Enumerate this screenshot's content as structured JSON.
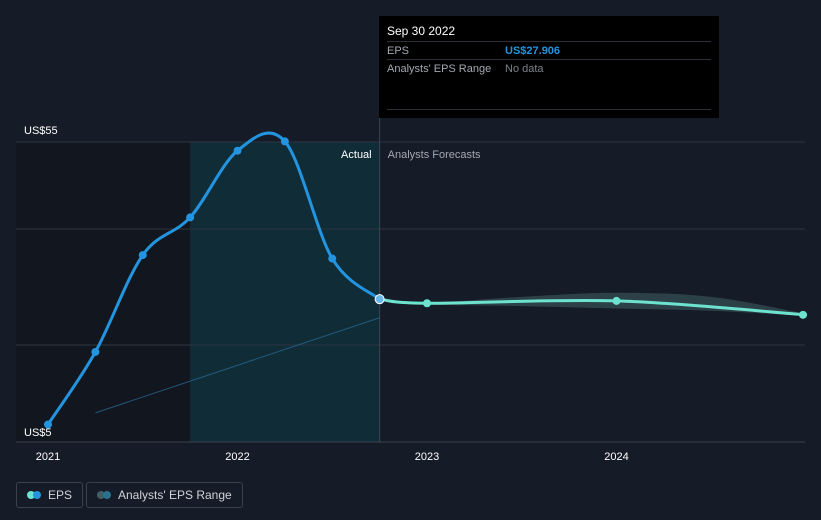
{
  "colors": {
    "background": "#151b27",
    "actual_line": "#2394df",
    "forecast_line": "#6ce2cf",
    "forecast_range": "#3f5f63",
    "highlight_band": "#0f2f3b",
    "eps_value": "#2394df"
  },
  "tooltip": {
    "date": "Sep 30 2022",
    "rows": [
      {
        "label": "EPS",
        "value": "US$27.906"
      },
      {
        "label": "Analysts' EPS Range",
        "value": "No data"
      }
    ]
  },
  "labels": {
    "actual": "Actual",
    "forecast": "Analysts Forecasts"
  },
  "legend": {
    "eps": "EPS",
    "range": "Analysts' EPS Range"
  },
  "chart_data": {
    "type": "line",
    "y_tick_labels": [
      {
        "value": 55,
        "label": "US$55"
      },
      {
        "value": 5,
        "label": "US$5"
      }
    ],
    "ylim": [
      5,
      55
    ],
    "xlim": [
      2021.0,
      2024.998
    ],
    "x_ticks": [
      {
        "value": 2021,
        "label": "2021"
      },
      {
        "value": 2022,
        "label": "2022"
      },
      {
        "value": 2023,
        "label": "2023"
      },
      {
        "value": 2024,
        "label": "2024"
      }
    ],
    "gridlines": [
      55,
      40,
      20
    ],
    "highlight_range": [
      2021.75,
      2022.75
    ],
    "series": [
      {
        "name": "EPS",
        "kind": "actual",
        "points": [
          {
            "x": 2021.0,
            "y": 6.3
          },
          {
            "x": 2021.25,
            "y": 18.8
          },
          {
            "x": 2021.5,
            "y": 35.5
          },
          {
            "x": 2021.75,
            "y": 42.0
          },
          {
            "x": 2022.0,
            "y": 53.5
          },
          {
            "x": 2022.25,
            "y": 55.1
          },
          {
            "x": 2022.5,
            "y": 34.9
          },
          {
            "x": 2022.75,
            "y": 27.9
          }
        ]
      },
      {
        "name": "Analysts Forecasts",
        "kind": "forecast",
        "points": [
          {
            "x": 2022.75,
            "y": 27.9
          },
          {
            "x": 2023.0,
            "y": 27.2
          },
          {
            "x": 2024.0,
            "y": 27.6
          },
          {
            "x": 2024.998,
            "y": 25.2
          }
        ],
        "range_upper": [
          {
            "x": 2022.75,
            "y": 27.9
          },
          {
            "x": 2023.0,
            "y": 27.3
          },
          {
            "x": 2023.5,
            "y": 28.3
          },
          {
            "x": 2024.0,
            "y": 29.0
          },
          {
            "x": 2024.5,
            "y": 28.3
          },
          {
            "x": 2024.998,
            "y": 25.4
          }
        ],
        "range_lower": [
          {
            "x": 2022.75,
            "y": 27.9
          },
          {
            "x": 2023.0,
            "y": 27.0
          },
          {
            "x": 2023.5,
            "y": 26.7
          },
          {
            "x": 2024.0,
            "y": 26.3
          },
          {
            "x": 2024.5,
            "y": 25.9
          },
          {
            "x": 2024.998,
            "y": 25.0
          }
        ]
      }
    ],
    "trend_line": [
      {
        "x": 2021.25,
        "y": 8.3
      },
      {
        "x": 2022.75,
        "y": 24.7
      }
    ],
    "legend_position": "bottom-left"
  }
}
